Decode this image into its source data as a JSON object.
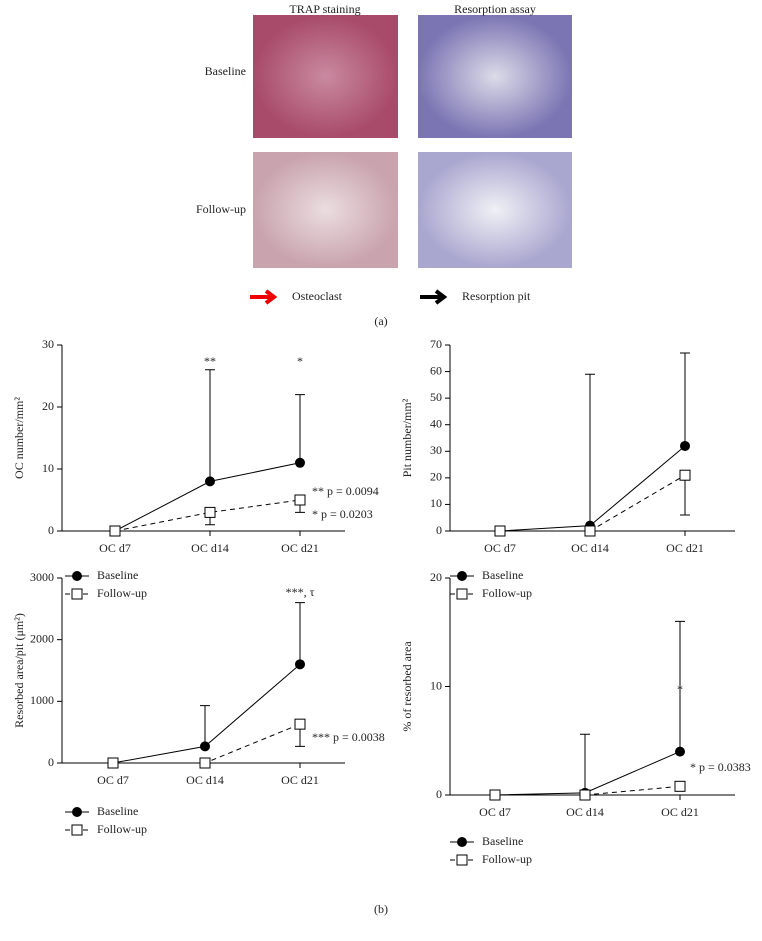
{
  "panel_a": {
    "columns": [
      "TRAP staining",
      "Resorption assay"
    ],
    "rows": [
      "Baseline",
      "Follow-up"
    ],
    "legend": [
      "Osteoclast",
      "Resorption pit"
    ],
    "label": "(a)"
  },
  "panel_b_label": "(b)",
  "chart_data": [
    {
      "type": "line",
      "ylabel": "OC number/mm²",
      "categories": [
        "OC d7",
        "OC d14",
        "OC d21"
      ],
      "ylim": [
        0,
        30
      ],
      "yticks": [
        0,
        10,
        20,
        30
      ],
      "series": [
        {
          "name": "Baseline",
          "color": "#000",
          "values": [
            0,
            8,
            11
          ],
          "errors": [
            0,
            18,
            11
          ]
        },
        {
          "name": "Follow-up",
          "color": "#000",
          "values": [
            0,
            3,
            5
          ],
          "errors": [
            0,
            2,
            2
          ]
        }
      ],
      "stars": [
        "**",
        "*"
      ],
      "pvalues": [
        "** p = 0.0094",
        "* p = 0.0203"
      ]
    },
    {
      "type": "line",
      "ylabel": "Pit number/mm²",
      "categories": [
        "OC d7",
        "OC d14",
        "OC d21"
      ],
      "ylim": [
        0,
        70
      ],
      "yticks": [
        0,
        10,
        20,
        30,
        40,
        50,
        60,
        70
      ],
      "series": [
        {
          "name": "Baseline",
          "color": "#000",
          "values": [
            0,
            2,
            32
          ],
          "errors": [
            0,
            57,
            35
          ]
        },
        {
          "name": "Follow-up",
          "color": "#000",
          "values": [
            0,
            0,
            21
          ],
          "errors": [
            0,
            0,
            15
          ]
        }
      ]
    },
    {
      "type": "line",
      "ylabel": "Resorbed area/pit (μm²)",
      "categories": [
        "OC d7",
        "OC d14",
        "OC d21"
      ],
      "ylim": [
        0,
        3000
      ],
      "yticks": [
        0,
        1000,
        2000,
        3000
      ],
      "series": [
        {
          "name": "Baseline",
          "color": "#000",
          "values": [
            0,
            270,
            1600
          ],
          "errors": [
            0,
            660,
            1000
          ]
        },
        {
          "name": "Follow-up",
          "color": "#000",
          "values": [
            0,
            0,
            630
          ],
          "errors": [
            0,
            0,
            360
          ]
        }
      ],
      "stars": [
        "***, τ"
      ],
      "pvalues": [
        "*** p = 0.0038"
      ]
    },
    {
      "type": "line",
      "ylabel": "% of resorbed area",
      "categories": [
        "OC d7",
        "OC d14",
        "OC d21"
      ],
      "ylim": [
        0,
        20
      ],
      "yticks": [
        0,
        10,
        20
      ],
      "series": [
        {
          "name": "Baseline",
          "color": "#000",
          "values": [
            0,
            0.2,
            4
          ],
          "errors": [
            0,
            5.4,
            12
          ]
        },
        {
          "name": "Follow-up",
          "color": "#000",
          "values": [
            0,
            0,
            0.8
          ],
          "errors": [
            0,
            0,
            0
          ]
        }
      ],
      "stars": [
        "*"
      ],
      "pvalues": [
        "* p = 0.0383"
      ]
    }
  ]
}
